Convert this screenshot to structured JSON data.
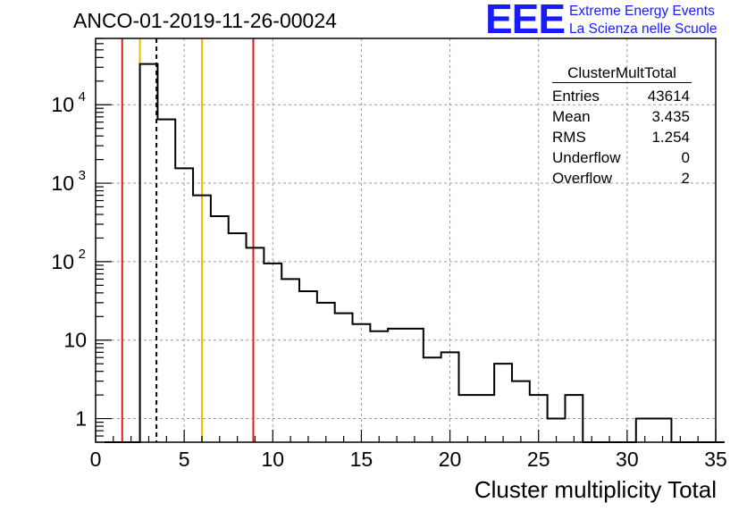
{
  "title": "ANCO-01-2019-11-26-00024",
  "logo": {
    "text": "EEE",
    "line1": "Extreme Energy Events",
    "line2": "La Scienza nelle Scuole",
    "color": "#1a1aff"
  },
  "stats": {
    "name": "ClusterMultTotal",
    "rows": [
      {
        "label": "Entries",
        "value": "43614"
      },
      {
        "label": "Mean",
        "value": "3.435"
      },
      {
        "label": "RMS",
        "value": "1.254"
      },
      {
        "label": "Underflow",
        "value": "0"
      },
      {
        "label": "Overflow",
        "value": "2"
      }
    ]
  },
  "chart_data": {
    "type": "histogram",
    "title": "ANCO-01-2019-11-26-00024",
    "xlabel": "Cluster multiplicity Total",
    "ylabel": "",
    "x_range": [
      0,
      35
    ],
    "y_range": [
      0.5,
      70000
    ],
    "y_scale": "log",
    "grid": true,
    "bin_width": 1,
    "bin_edges_start": 0.5,
    "counts": [
      0,
      0,
      33000,
      6500,
      1550,
      700,
      380,
      230,
      150,
      95,
      60,
      42,
      30,
      22,
      16,
      13,
      14,
      14,
      6,
      7,
      2,
      2,
      5,
      3,
      2,
      1,
      2,
      0,
      0,
      0,
      1,
      1,
      0,
      0,
      0
    ],
    "x_ticks": [
      0,
      5,
      10,
      15,
      20,
      25,
      30,
      35
    ],
    "x_tick_labels": [
      "0",
      "5",
      "10",
      "15",
      "20",
      "25",
      "30",
      "35"
    ],
    "y_ticks": [
      1,
      10,
      100,
      1000,
      10000
    ],
    "vertical_lines": [
      {
        "x": 1.5,
        "color": "#e41a1a",
        "style": "solid"
      },
      {
        "x": 2.5,
        "color": "#f5b800",
        "style": "solid"
      },
      {
        "x": 3.435,
        "color": "#000000",
        "style": "dashed"
      },
      {
        "x": 6.0,
        "color": "#f5b800",
        "style": "solid"
      },
      {
        "x": 8.9,
        "color": "#e41a1a",
        "style": "solid"
      }
    ],
    "line_color": "#000000"
  }
}
